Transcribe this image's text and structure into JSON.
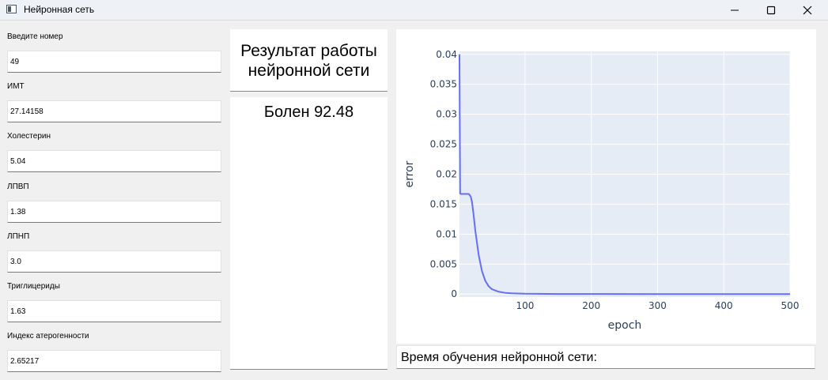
{
  "window": {
    "title": "Нейронная сеть"
  },
  "form": {
    "fields": [
      {
        "label": "Введите номер",
        "value": "49"
      },
      {
        "label": "ИМТ",
        "value": "27.14158"
      },
      {
        "label": "Холестерин",
        "value": "5.04"
      },
      {
        "label": "ЛПВП",
        "value": "1.38"
      },
      {
        "label": "ЛПНП",
        "value": "3.0"
      },
      {
        "label": "Триглицериды",
        "value": "1.63"
      },
      {
        "label": "Индекс атерогенности",
        "value": "2.65217"
      }
    ]
  },
  "result": {
    "title": "Результат работы нейронной сети",
    "value": "Болен 92.48"
  },
  "training_time": {
    "label": "Время обучения нейронной сети:"
  },
  "chart_data": {
    "type": "line",
    "xlabel": "epoch",
    "ylabel": "error",
    "xlim": [
      1,
      500
    ],
    "ylim": [
      -0.0005,
      0.0405
    ],
    "xticks": [
      100,
      200,
      300,
      400,
      500
    ],
    "yticks": [
      0,
      0.005,
      0.01,
      0.015,
      0.02,
      0.025,
      0.03,
      0.035,
      0.04
    ],
    "ytick_labels": [
      "0",
      "0.005",
      "0.01",
      "0.015",
      "0.02",
      "0.025",
      "0.03",
      "0.035",
      "0.04"
    ],
    "grid": true,
    "colors": {
      "line": "#636efa",
      "plot_bg": "#e5ecf6"
    },
    "series": [
      {
        "x": [
          1,
          2,
          3,
          5,
          10,
          15,
          18,
          20,
          22,
          25,
          30,
          35,
          40,
          45,
          50,
          60,
          70,
          80,
          100,
          150,
          200,
          300,
          400,
          500
        ],
        "y": [
          0.04,
          0.0168,
          0.0167,
          0.0167,
          0.0167,
          0.0167,
          0.0163,
          0.0153,
          0.0135,
          0.0105,
          0.0065,
          0.0038,
          0.0022,
          0.0013,
          0.0008,
          0.0004,
          0.0002,
          0.00012,
          6e-05,
          2e-05,
          1e-05,
          0.0,
          0.0,
          0.0
        ]
      }
    ]
  }
}
